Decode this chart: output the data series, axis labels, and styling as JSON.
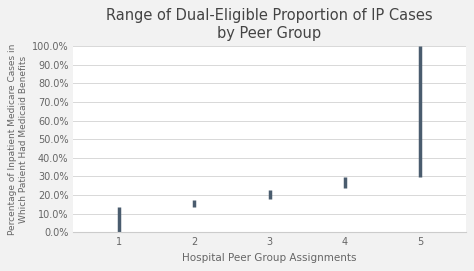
{
  "title_line1": "Range of Dual-Eligible Proportion of IP Cases",
  "title_line2": "by Peer Group",
  "xlabel": "Hospital Peer Group Assignments",
  "ylabel": "Percentage of Inpatient Medicare Cases in\nWhich Patient Had Medicaid Benefits",
  "categories": [
    1,
    2,
    3,
    4,
    5
  ],
  "range_low": [
    0.0,
    0.135,
    0.18,
    0.235,
    0.295
  ],
  "range_high": [
    0.135,
    0.175,
    0.225,
    0.295,
    1.0
  ],
  "line_color": "#4a5c6e",
  "line_width": 2.5,
  "ylim": [
    0.0,
    1.0
  ],
  "ytick_vals": [
    0.0,
    0.1,
    0.2,
    0.3,
    0.4,
    0.5,
    0.6,
    0.7,
    0.8,
    0.9,
    1.0
  ],
  "background_color": "#f2f2f2",
  "plot_bg_color": "#ffffff",
  "title_color": "#444444",
  "title_fontsize": 10.5,
  "axis_label_fontsize": 7.5,
  "tick_fontsize": 7,
  "ylabel_fontsize": 6.5,
  "grid_color": "#d8d8d8",
  "spine_color": "#cccccc",
  "text_color": "#666666"
}
